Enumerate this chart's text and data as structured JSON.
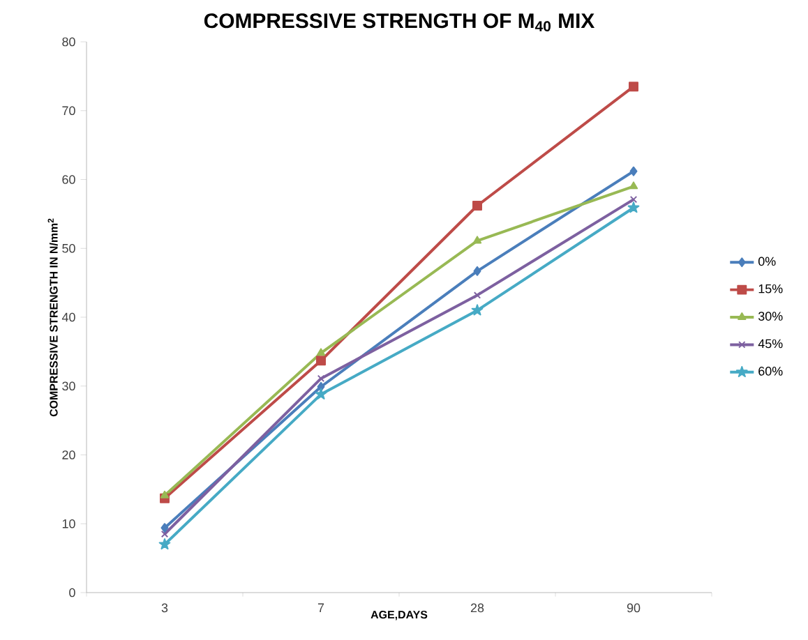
{
  "chart_data": {
    "type": "line",
    "title": "COMPRESSIVE STRENGTH OF M$_{40}$ MIX",
    "xlabel": "AGE,DAYS",
    "ylabel": "COMPRESSIVE STRENGTH  IN N/mm$^{2}$",
    "categories": [
      "3",
      "7",
      "28",
      "90"
    ],
    "ylim": [
      0,
      80
    ],
    "yticks": [
      0,
      10,
      20,
      30,
      40,
      50,
      60,
      70,
      80
    ],
    "grid": false,
    "legend": "right",
    "line_style": "solid",
    "series": [
      {
        "name": "0%",
        "color": "#4a7ebb",
        "marker": "diamond",
        "values": [
          9.4,
          29.9,
          46.7,
          61.2
        ]
      },
      {
        "name": "15%",
        "color": "#be4b48",
        "marker": "square",
        "values": [
          13.7,
          33.7,
          56.2,
          73.5
        ]
      },
      {
        "name": "30%",
        "color": "#98b954",
        "marker": "triangle",
        "values": [
          14.1,
          34.8,
          51.1,
          59.0
        ]
      },
      {
        "name": "45%",
        "color": "#7d60a0",
        "marker": "cross",
        "values": [
          8.5,
          31.1,
          43.2,
          57.1
        ]
      },
      {
        "name": "60%",
        "color": "#46aac5",
        "marker": "star",
        "values": [
          7.0,
          28.8,
          41.0,
          55.9
        ]
      }
    ]
  }
}
